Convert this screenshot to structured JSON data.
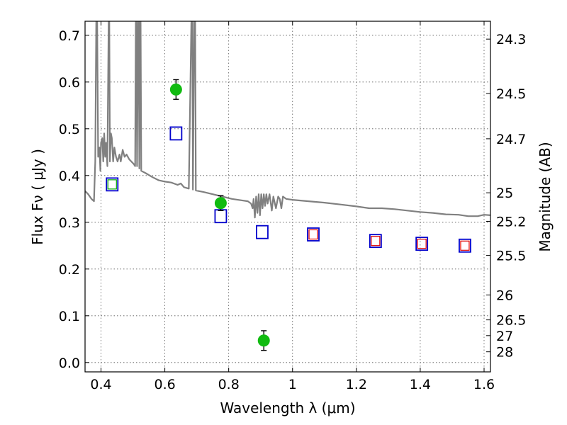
{
  "chart_data": {
    "type": "scatter",
    "xlabel": "Wavelength  λ (μm)",
    "ylabel_left": "Flux  Fν  ( μJy )",
    "ylabel_right": "Magnitude (AB)",
    "xlim": [
      0.35,
      1.62
    ],
    "ylim": [
      -0.02,
      0.73
    ],
    "grid": true,
    "x_ticks": [
      {
        "value": 0.4,
        "label": "0.4"
      },
      {
        "value": 0.6,
        "label": "0.6"
      },
      {
        "value": 0.8,
        "label": "0.8"
      },
      {
        "value": 1.0,
        "label": "1"
      },
      {
        "value": 1.2,
        "label": "1.2"
      },
      {
        "value": 1.4,
        "label": "1.4"
      },
      {
        "value": 1.6,
        "label": "1.6"
      }
    ],
    "y_ticks": [
      {
        "value": 0.0,
        "label": "0.0"
      },
      {
        "value": 0.1,
        "label": "0.1"
      },
      {
        "value": 0.2,
        "label": "0.2"
      },
      {
        "value": 0.3,
        "label": "0.3"
      },
      {
        "value": 0.4,
        "label": "0.4"
      },
      {
        "value": 0.5,
        "label": "0.5"
      },
      {
        "value": 0.6,
        "label": "0.6"
      },
      {
        "value": 0.7,
        "label": "0.7"
      }
    ],
    "right_ticks": [
      {
        "label": "24.3",
        "mag": 24.3
      },
      {
        "label": "24.5",
        "mag": 24.5
      },
      {
        "label": "24.7",
        "mag": 24.7
      },
      {
        "label": "25",
        "mag": 25.0
      },
      {
        "label": "25.2",
        "mag": 25.2
      },
      {
        "label": "25.5",
        "mag": 25.5
      },
      {
        "label": "26",
        "mag": 26.0
      },
      {
        "label": "26.5",
        "mag": 26.5
      },
      {
        "label": "27",
        "mag": 27.0
      },
      {
        "label": "28",
        "mag": 28.0
      }
    ],
    "observed": [
      {
        "x": 0.635,
        "y": 0.584,
        "err": 0.021
      },
      {
        "x": 0.775,
        "y": 0.341,
        "err": 0.016
      },
      {
        "x": 0.91,
        "y": 0.047,
        "err": 0.021
      }
    ],
    "model_photometry": [
      {
        "x": 0.435,
        "y": 0.381
      },
      {
        "x": 0.635,
        "y": 0.49
      },
      {
        "x": 0.775,
        "y": 0.313
      },
      {
        "x": 0.905,
        "y": 0.279
      },
      {
        "x": 1.065,
        "y": 0.274
      },
      {
        "x": 1.26,
        "y": 0.26
      },
      {
        "x": 1.405,
        "y": 0.254
      },
      {
        "x": 1.54,
        "y": 0.25
      }
    ],
    "inner_markers": [
      {
        "x": 0.435,
        "y": 0.381,
        "color": "#00aa00"
      },
      {
        "x": 1.065,
        "y": 0.274,
        "color": "#dd0000"
      },
      {
        "x": 1.26,
        "y": 0.26,
        "color": "#dd0000"
      },
      {
        "x": 1.405,
        "y": 0.254,
        "color": "#dd0000"
      },
      {
        "x": 1.54,
        "y": 0.25,
        "color": "#dd0000"
      }
    ],
    "spectrum": [
      [
        0.35,
        0.367
      ],
      [
        0.36,
        0.36
      ],
      [
        0.37,
        0.35
      ],
      [
        0.378,
        0.345
      ],
      [
        0.382,
        0.43
      ],
      [
        0.385,
        0.73
      ],
      [
        0.388,
        0.73
      ],
      [
        0.391,
        0.44
      ],
      [
        0.395,
        0.46
      ],
      [
        0.398,
        0.41
      ],
      [
        0.4,
        0.47
      ],
      [
        0.404,
        0.48
      ],
      [
        0.407,
        0.43
      ],
      [
        0.41,
        0.49
      ],
      [
        0.413,
        0.44
      ],
      [
        0.416,
        0.47
      ],
      [
        0.42,
        0.42
      ],
      [
        0.424,
        0.73
      ],
      [
        0.426,
        0.73
      ],
      [
        0.428,
        0.43
      ],
      [
        0.431,
        0.49
      ],
      [
        0.434,
        0.48
      ],
      [
        0.438,
        0.43
      ],
      [
        0.442,
        0.46
      ],
      [
        0.447,
        0.44
      ],
      [
        0.452,
        0.43
      ],
      [
        0.458,
        0.445
      ],
      [
        0.462,
        0.43
      ],
      [
        0.468,
        0.455
      ],
      [
        0.474,
        0.44
      ],
      [
        0.48,
        0.445
      ],
      [
        0.488,
        0.435
      ],
      [
        0.495,
        0.43
      ],
      [
        0.502,
        0.425
      ],
      [
        0.507,
        0.42
      ],
      [
        0.509,
        0.73
      ],
      [
        0.511,
        0.73
      ],
      [
        0.513,
        0.42
      ],
      [
        0.516,
        0.73
      ],
      [
        0.518,
        0.73
      ],
      [
        0.52,
        0.415
      ],
      [
        0.522,
        0.73
      ],
      [
        0.524,
        0.73
      ],
      [
        0.526,
        0.41
      ],
      [
        0.54,
        0.405
      ],
      [
        0.56,
        0.397
      ],
      [
        0.58,
        0.39
      ],
      [
        0.6,
        0.387
      ],
      [
        0.62,
        0.385
      ],
      [
        0.64,
        0.38
      ],
      [
        0.65,
        0.383
      ],
      [
        0.66,
        0.375
      ],
      [
        0.675,
        0.372
      ],
      [
        0.683,
        0.73
      ],
      [
        0.686,
        0.73
      ],
      [
        0.688,
        0.37
      ],
      [
        0.692,
        0.73
      ],
      [
        0.695,
        0.73
      ],
      [
        0.697,
        0.368
      ],
      [
        0.72,
        0.365
      ],
      [
        0.75,
        0.36
      ],
      [
        0.78,
        0.355
      ],
      [
        0.81,
        0.35
      ],
      [
        0.84,
        0.347
      ],
      [
        0.86,
        0.345
      ],
      [
        0.87,
        0.34
      ],
      [
        0.875,
        0.33
      ],
      [
        0.878,
        0.35
      ],
      [
        0.882,
        0.31
      ],
      [
        0.886,
        0.355
      ],
      [
        0.89,
        0.32
      ],
      [
        0.894,
        0.36
      ],
      [
        0.898,
        0.315
      ],
      [
        0.902,
        0.36
      ],
      [
        0.906,
        0.33
      ],
      [
        0.91,
        0.36
      ],
      [
        0.914,
        0.335
      ],
      [
        0.918,
        0.36
      ],
      [
        0.922,
        0.34
      ],
      [
        0.928,
        0.36
      ],
      [
        0.935,
        0.325
      ],
      [
        0.94,
        0.355
      ],
      [
        0.948,
        0.33
      ],
      [
        0.955,
        0.355
      ],
      [
        0.96,
        0.35
      ],
      [
        0.965,
        0.33
      ],
      [
        0.97,
        0.355
      ],
      [
        0.98,
        0.35
      ],
      [
        1.0,
        0.348
      ],
      [
        1.05,
        0.345
      ],
      [
        1.1,
        0.342
      ],
      [
        1.15,
        0.338
      ],
      [
        1.2,
        0.334
      ],
      [
        1.24,
        0.33
      ],
      [
        1.28,
        0.33
      ],
      [
        1.32,
        0.328
      ],
      [
        1.36,
        0.325
      ],
      [
        1.4,
        0.322
      ],
      [
        1.44,
        0.32
      ],
      [
        1.48,
        0.317
      ],
      [
        1.52,
        0.316
      ],
      [
        1.55,
        0.313
      ],
      [
        1.58,
        0.313
      ],
      [
        1.6,
        0.316
      ],
      [
        1.62,
        0.315
      ]
    ]
  }
}
